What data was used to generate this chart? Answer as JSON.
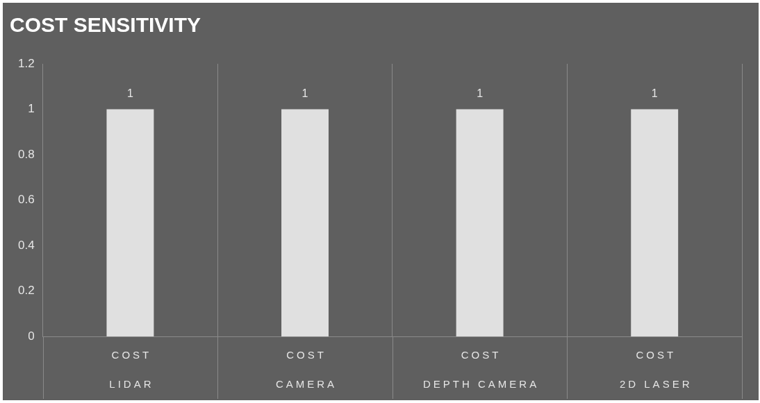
{
  "chart_data": {
    "type": "bar",
    "title": "COST SENSITIVITY",
    "categories": [
      "COST\nLIDAR",
      "COST\nCAMERA",
      "COST\nDEPTH CAMERA",
      "COST\n2D LASER"
    ],
    "values": [
      1,
      1,
      1,
      1
    ],
    "color": "#e0e0e0",
    "ylim": [
      0,
      1.2
    ],
    "yticks": [
      0,
      0.2,
      0.4,
      0.6,
      0.8,
      1,
      1.2
    ],
    "grid": "x",
    "data_labels": true,
    "legend": false
  }
}
